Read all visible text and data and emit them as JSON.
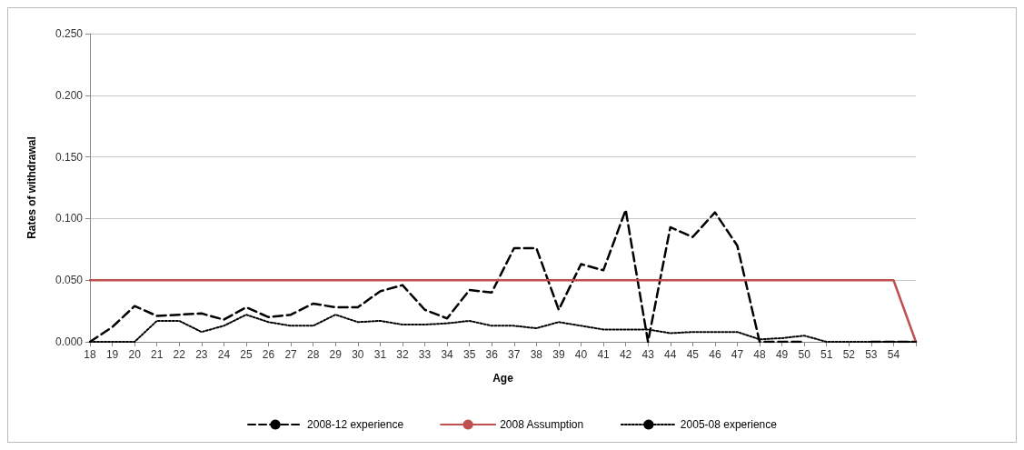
{
  "chart_data": {
    "type": "line",
    "xlabel": "Age",
    "ylabel": "Rates of withdrawal",
    "categories": [
      "18",
      "19",
      "20",
      "21",
      "22",
      "23",
      "24",
      "25",
      "26",
      "27",
      "28",
      "29",
      "30",
      "31",
      "32",
      "33",
      "34",
      "35",
      "36",
      "37",
      "38",
      "39",
      "40",
      "41",
      "42",
      "43",
      "44",
      "45",
      "46",
      "47",
      "48",
      "49",
      "50",
      "51",
      "52",
      "53",
      "54",
      null
    ],
    "series": [
      {
        "name": "2008-12 experience",
        "color": "#000000",
        "line_style": "dashed",
        "values": [
          0,
          0.012,
          0.029,
          0.021,
          0.022,
          0.023,
          0.018,
          0.028,
          0.02,
          0.022,
          0.031,
          0.028,
          0.028,
          0.041,
          0.046,
          0.026,
          0.019,
          0.042,
          0.04,
          0.076,
          0.076,
          0.026,
          0.063,
          0.058,
          0.107,
          0,
          0.093,
          0.085,
          0.105,
          0.078,
          0,
          0,
          0,
          null,
          null,
          0,
          0,
          0
        ]
      },
      {
        "name": "2008 Assumption",
        "color": "#c0504d",
        "line_style": "solid",
        "values": [
          0.05,
          0.05,
          0.05,
          0.05,
          0.05,
          0.05,
          0.05,
          0.05,
          0.05,
          0.05,
          0.05,
          0.05,
          0.05,
          0.05,
          0.05,
          0.05,
          0.05,
          0.05,
          0.05,
          0.05,
          0.05,
          0.05,
          0.05,
          0.05,
          0.05,
          0.05,
          0.05,
          0.05,
          0.05,
          0.05,
          0.05,
          0.05,
          0.05,
          0.05,
          0.05,
          0.05,
          0.05,
          0
        ]
      },
      {
        "name": "2005-08 experience",
        "color": "#000000",
        "line_style": "dotted",
        "values": [
          0,
          0,
          0,
          0.017,
          0.017,
          0.008,
          0.013,
          0.022,
          0.016,
          0.013,
          0.013,
          0.022,
          0.016,
          0.017,
          0.014,
          0.014,
          0.015,
          0.017,
          0.013,
          0.013,
          0.011,
          0.016,
          0.013,
          0.01,
          0.01,
          0.01,
          0.007,
          0.008,
          0.008,
          0.008,
          0.002,
          0.003,
          0.005,
          0,
          0,
          0,
          0,
          0
        ]
      }
    ],
    "ylim": [
      0,
      0.25
    ],
    "yticks": [
      {
        "value": 0,
        "label": "0.000"
      },
      {
        "value": 0.05,
        "label": "0.050"
      },
      {
        "value": 0.1,
        "label": "0.100"
      },
      {
        "value": 0.15,
        "label": "0.150"
      },
      {
        "value": 0.2,
        "label": "0.200"
      },
      {
        "value": 0.25,
        "label": "0.250"
      }
    ],
    "grid": "y",
    "legend": "bottom",
    "marker": "none"
  }
}
